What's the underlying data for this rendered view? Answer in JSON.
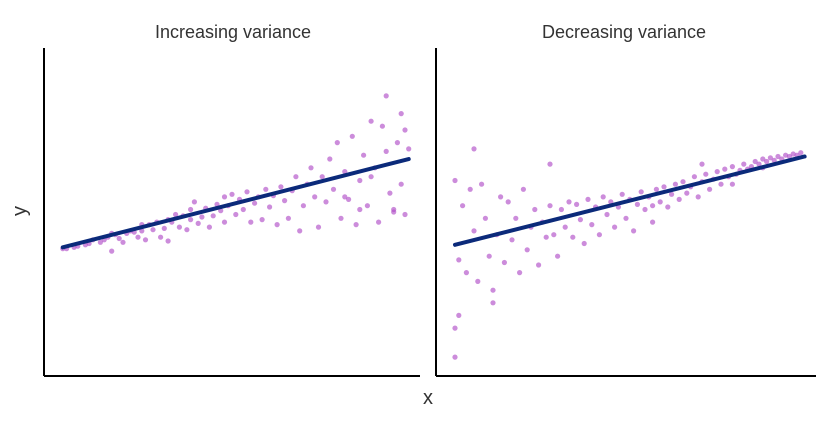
{
  "figure": {
    "xlabel": "x",
    "ylabel": "y"
  },
  "colors": {
    "points": "#b04fc7",
    "trend": "#0b2a7a",
    "axis": "#000000"
  },
  "chart_data": [
    {
      "type": "scatter",
      "title": "Increasing variance",
      "xlabel": "",
      "ylabel": "",
      "xlim": [
        0,
        1
      ],
      "ylim": [
        -1.3,
        1.3
      ],
      "grid": false,
      "trend": {
        "x": [
          0.05,
          0.97
        ],
        "y": [
          -0.28,
          0.42
        ]
      },
      "points": [
        [
          0.05,
          -0.29
        ],
        [
          0.06,
          -0.29
        ],
        [
          0.08,
          -0.28
        ],
        [
          0.09,
          -0.27
        ],
        [
          0.11,
          -0.26
        ],
        [
          0.12,
          -0.25
        ],
        [
          0.13,
          -0.22
        ],
        [
          0.15,
          -0.24
        ],
        [
          0.16,
          -0.22
        ],
        [
          0.17,
          -0.2
        ],
        [
          0.18,
          -0.17
        ],
        [
          0.18,
          -0.31
        ],
        [
          0.19,
          -0.18
        ],
        [
          0.2,
          -0.21
        ],
        [
          0.21,
          -0.24
        ],
        [
          0.22,
          -0.17
        ],
        [
          0.23,
          -0.15
        ],
        [
          0.24,
          -0.16
        ],
        [
          0.25,
          -0.2
        ],
        [
          0.26,
          -0.1
        ],
        [
          0.26,
          -0.15
        ],
        [
          0.27,
          -0.22
        ],
        [
          0.28,
          -0.1
        ],
        [
          0.29,
          -0.14
        ],
        [
          0.3,
          -0.08
        ],
        [
          0.31,
          -0.2
        ],
        [
          0.32,
          -0.13
        ],
        [
          0.33,
          -0.06
        ],
        [
          0.33,
          -0.23
        ],
        [
          0.34,
          -0.08
        ],
        [
          0.35,
          -0.02
        ],
        [
          0.36,
          -0.12
        ],
        [
          0.37,
          -0.03
        ],
        [
          0.38,
          -0.14
        ],
        [
          0.39,
          0.02
        ],
        [
          0.39,
          -0.06
        ],
        [
          0.4,
          0.08
        ],
        [
          0.41,
          -0.09
        ],
        [
          0.42,
          -0.04
        ],
        [
          0.43,
          0.03
        ],
        [
          0.44,
          -0.12
        ],
        [
          0.45,
          -0.03
        ],
        [
          0.46,
          0.06
        ],
        [
          0.47,
          0.01
        ],
        [
          0.48,
          0.12
        ],
        [
          0.48,
          -0.08
        ],
        [
          0.49,
          0.05
        ],
        [
          0.5,
          0.14
        ],
        [
          0.51,
          -0.02
        ],
        [
          0.52,
          0.1
        ],
        [
          0.53,
          0.02
        ],
        [
          0.54,
          0.16
        ],
        [
          0.55,
          -0.08
        ],
        [
          0.56,
          0.07
        ],
        [
          0.57,
          0.12
        ],
        [
          0.58,
          -0.06
        ],
        [
          0.59,
          0.18
        ],
        [
          0.6,
          0.04
        ],
        [
          0.61,
          0.13
        ],
        [
          0.62,
          -0.1
        ],
        [
          0.63,
          0.2
        ],
        [
          0.64,
          0.09
        ],
        [
          0.65,
          -0.05
        ],
        [
          0.66,
          0.17
        ],
        [
          0.67,
          0.28
        ],
        [
          0.68,
          -0.15
        ],
        [
          0.69,
          0.05
        ],
        [
          0.7,
          0.22
        ],
        [
          0.71,
          0.35
        ],
        [
          0.72,
          0.12
        ],
        [
          0.73,
          -0.12
        ],
        [
          0.74,
          0.28
        ],
        [
          0.75,
          0.08
        ],
        [
          0.76,
          0.42
        ],
        [
          0.77,
          0.18
        ],
        [
          0.78,
          0.55
        ],
        [
          0.79,
          -0.05
        ],
        [
          0.8,
          0.32
        ],
        [
          0.81,
          0.1
        ],
        [
          0.82,
          0.6
        ],
        [
          0.83,
          -0.1
        ],
        [
          0.84,
          0.25
        ],
        [
          0.85,
          0.45
        ],
        [
          0.86,
          0.05
        ],
        [
          0.87,
          0.72
        ],
        [
          0.88,
          0.35
        ],
        [
          0.89,
          -0.08
        ],
        [
          0.9,
          0.68
        ],
        [
          0.91,
          0.48
        ],
        [
          0.92,
          0.15
        ],
        [
          0.93,
          0.02
        ],
        [
          0.94,
          0.55
        ],
        [
          0.95,
          0.22
        ],
        [
          0.96,
          0.65
        ],
        [
          0.96,
          -0.02
        ],
        [
          0.97,
          0.5
        ],
        [
          0.87,
          0.28
        ],
        [
          0.91,
          0.92
        ],
        [
          0.93,
          0.0
        ],
        [
          0.95,
          0.78
        ],
        [
          0.84,
          0.02
        ],
        [
          0.8,
          0.12
        ]
      ]
    },
    {
      "type": "scatter",
      "title": "Decreasing variance",
      "xlabel": "",
      "ylabel": "",
      "xlim": [
        0,
        1
      ],
      "ylim": [
        -1.3,
        1.3
      ],
      "grid": false,
      "trend": {
        "x": [
          0.05,
          0.97
        ],
        "y": [
          -0.26,
          0.44
        ]
      },
      "points": [
        [
          0.05,
          -1.15
        ],
        [
          0.05,
          -0.92
        ],
        [
          0.06,
          -0.82
        ],
        [
          0.05,
          0.25
        ],
        [
          0.06,
          -0.38
        ],
        [
          0.07,
          0.05
        ],
        [
          0.08,
          -0.48
        ],
        [
          0.09,
          0.18
        ],
        [
          0.1,
          -0.15
        ],
        [
          0.11,
          -0.55
        ],
        [
          0.12,
          0.22
        ],
        [
          0.13,
          -0.05
        ],
        [
          0.14,
          -0.35
        ],
        [
          0.15,
          -0.62
        ],
        [
          0.15,
          -0.72
        ],
        [
          0.16,
          -0.18
        ],
        [
          0.17,
          0.12
        ],
        [
          0.18,
          -0.4
        ],
        [
          0.19,
          0.08
        ],
        [
          0.2,
          -0.22
        ],
        [
          0.21,
          -0.05
        ],
        [
          0.22,
          -0.48
        ],
        [
          0.23,
          0.18
        ],
        [
          0.24,
          -0.3
        ],
        [
          0.25,
          -0.12
        ],
        [
          0.26,
          0.02
        ],
        [
          0.27,
          -0.42
        ],
        [
          0.28,
          -0.08
        ],
        [
          0.29,
          -0.2
        ],
        [
          0.3,
          0.05
        ],
        [
          0.31,
          -0.18
        ],
        [
          0.32,
          -0.35
        ],
        [
          0.33,
          0.02
        ],
        [
          0.34,
          -0.12
        ],
        [
          0.35,
          0.08
        ],
        [
          0.36,
          -0.2
        ],
        [
          0.37,
          0.06
        ],
        [
          0.38,
          -0.06
        ],
        [
          0.39,
          -0.25
        ],
        [
          0.4,
          0.1
        ],
        [
          0.41,
          -0.1
        ],
        [
          0.42,
          0.04
        ],
        [
          0.43,
          -0.18
        ],
        [
          0.44,
          0.12
        ],
        [
          0.45,
          -0.02
        ],
        [
          0.46,
          0.08
        ],
        [
          0.47,
          -0.12
        ],
        [
          0.48,
          0.04
        ],
        [
          0.49,
          0.14
        ],
        [
          0.5,
          -0.05
        ],
        [
          0.51,
          0.1
        ],
        [
          0.52,
          -0.15
        ],
        [
          0.53,
          0.06
        ],
        [
          0.54,
          0.16
        ],
        [
          0.55,
          0.02
        ],
        [
          0.56,
          0.12
        ],
        [
          0.57,
          -0.08
        ],
        [
          0.58,
          0.18
        ],
        [
          0.59,
          0.08
        ],
        [
          0.6,
          0.2
        ],
        [
          0.61,
          0.04
        ],
        [
          0.62,
          0.14
        ],
        [
          0.63,
          0.22
        ],
        [
          0.64,
          0.1
        ],
        [
          0.65,
          0.24
        ],
        [
          0.66,
          0.15
        ],
        [
          0.67,
          0.2
        ],
        [
          0.68,
          0.28
        ],
        [
          0.69,
          0.12
        ],
        [
          0.7,
          0.24
        ],
        [
          0.71,
          0.3
        ],
        [
          0.72,
          0.18
        ],
        [
          0.73,
          0.26
        ],
        [
          0.74,
          0.32
        ],
        [
          0.75,
          0.22
        ],
        [
          0.76,
          0.34
        ],
        [
          0.77,
          0.28
        ],
        [
          0.78,
          0.36
        ],
        [
          0.79,
          0.3
        ],
        [
          0.8,
          0.33
        ],
        [
          0.81,
          0.38
        ],
        [
          0.82,
          0.34
        ],
        [
          0.83,
          0.36
        ],
        [
          0.84,
          0.4
        ],
        [
          0.85,
          0.38
        ],
        [
          0.86,
          0.42
        ],
        [
          0.87,
          0.4
        ],
        [
          0.88,
          0.43
        ],
        [
          0.89,
          0.41
        ],
        [
          0.9,
          0.44
        ],
        [
          0.91,
          0.42
        ],
        [
          0.92,
          0.45
        ],
        [
          0.93,
          0.44
        ],
        [
          0.94,
          0.46
        ],
        [
          0.95,
          0.45
        ],
        [
          0.96,
          0.47
        ],
        [
          0.1,
          0.5
        ],
        [
          0.3,
          0.38
        ],
        [
          0.57,
          0.05
        ],
        [
          0.7,
          0.38
        ],
        [
          0.78,
          0.22
        ],
        [
          0.86,
          0.35
        ]
      ]
    }
  ]
}
